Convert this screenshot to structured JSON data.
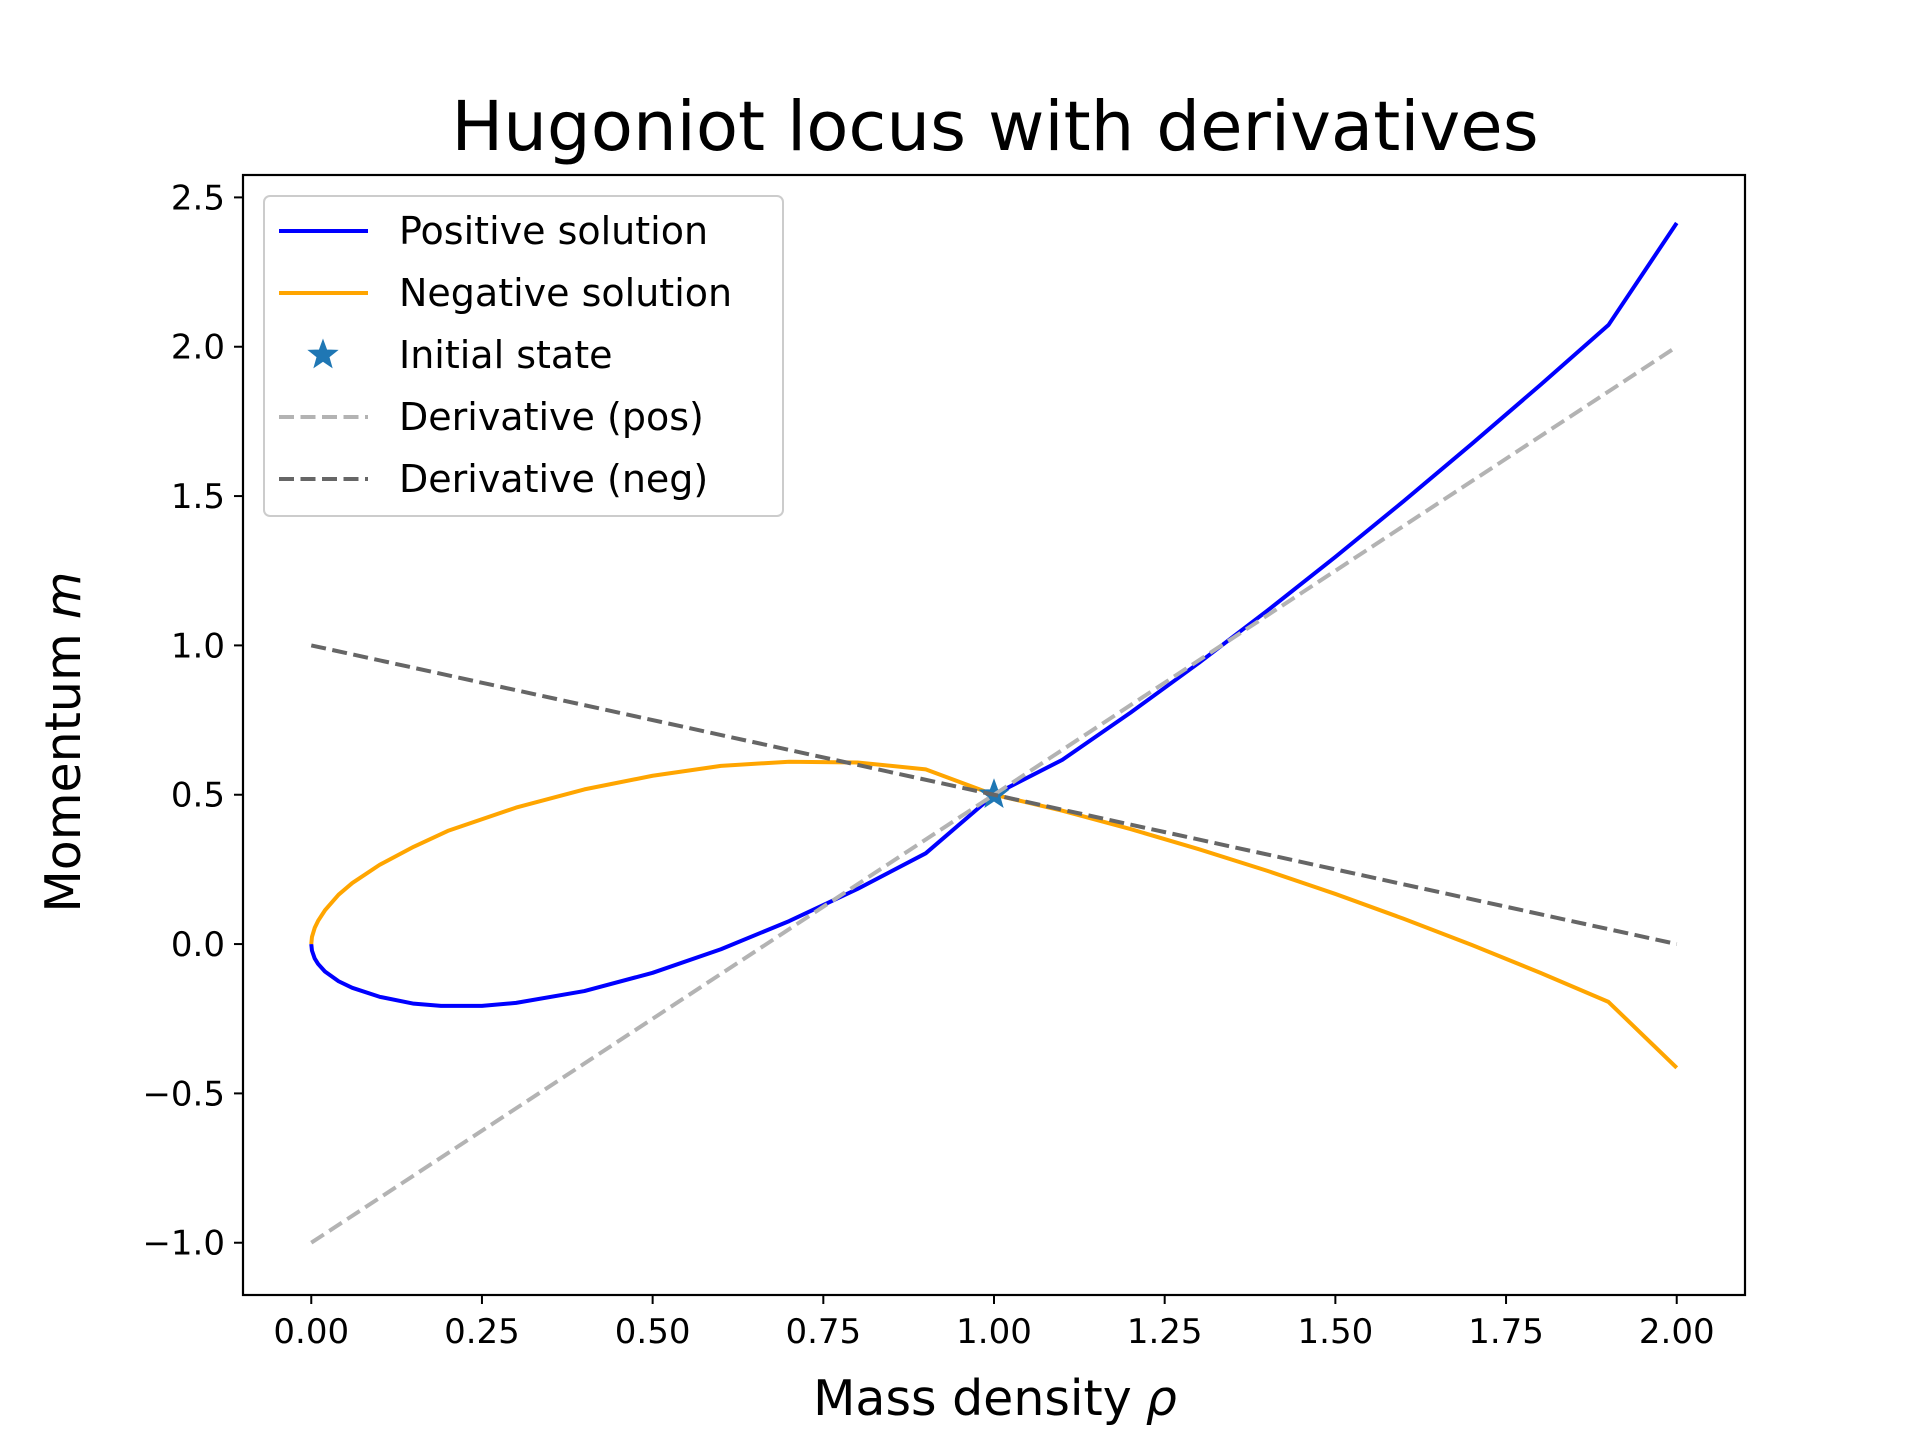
{
  "chart_data": {
    "type": "line",
    "title": "Hugoniot locus with derivatives",
    "xlabel": "Mass density",
    "xlabel_symbol": "ρ",
    "ylabel": "Momentum",
    "ylabel_symbol": "m",
    "xlim": [
      -0.1,
      2.1
    ],
    "ylim": [
      -1.175,
      2.575
    ],
    "x_ticks": [
      0.0,
      0.25,
      0.5,
      0.75,
      1.0,
      1.25,
      1.5,
      1.75,
      2.0
    ],
    "x_tick_labels": [
      "0.00",
      "0.25",
      "0.50",
      "0.75",
      "1.00",
      "1.25",
      "1.50",
      "1.75",
      "2.00"
    ],
    "y_ticks": [
      -1.0,
      -0.5,
      0.0,
      0.5,
      1.0,
      1.5,
      2.0,
      2.5
    ],
    "y_tick_labels": [
      "−1.0",
      "−0.5",
      "0.0",
      "0.5",
      "1.0",
      "1.5",
      "2.0",
      "2.5"
    ],
    "grid": false,
    "legend_position": "upper-left",
    "series": [
      {
        "name": "Positive solution",
        "color": "#0000ff",
        "style": "solid",
        "x": [
          0.0,
          0.001,
          0.005,
          0.01,
          0.02,
          0.04,
          0.06,
          0.1,
          0.15,
          0.19,
          0.25,
          0.3,
          0.4,
          0.5,
          0.6,
          0.7,
          0.8,
          0.9,
          1.0,
          1.1,
          1.2,
          1.3,
          1.4,
          1.5,
          1.6,
          1.7,
          1.8,
          1.9,
          2.0
        ],
        "y": [
          0.0,
          -0.0219,
          -0.0481,
          -0.0666,
          -0.0918,
          -0.1245,
          -0.1464,
          -0.1765,
          -0.1995,
          -0.2071,
          -0.2071,
          -0.1969,
          -0.1573,
          -0.0962,
          -0.0174,
          0.0769,
          0.1844,
          0.3038,
          0.5,
          0.6168,
          0.775,
          0.9413,
          1.1157,
          1.2962,
          1.4828,
          1.6749,
          1.8714,
          2.0726,
          2.4142
        ]
      },
      {
        "name": "Negative solution",
        "color": "#ffa500",
        "style": "solid",
        "x": [
          0.0,
          0.001,
          0.005,
          0.01,
          0.02,
          0.04,
          0.06,
          0.1,
          0.15,
          0.2,
          0.3,
          0.4,
          0.5,
          0.6,
          0.7,
          0.8,
          0.9,
          1.0,
          1.1,
          1.2,
          1.3,
          1.4,
          1.5,
          1.6,
          1.7,
          1.8,
          1.9,
          2.0
        ],
        "y": [
          0.0,
          0.0239,
          0.0541,
          0.0778,
          0.1129,
          0.1653,
          0.2043,
          0.2652,
          0.3257,
          0.3789,
          0.4569,
          0.5179,
          0.5635,
          0.5966,
          0.6106,
          0.6081,
          0.5849,
          0.5,
          0.4467,
          0.385,
          0.3178,
          0.2455,
          0.1679,
          0.0848,
          -0.0031,
          -0.0961,
          -0.1936,
          -0.4142
        ]
      },
      {
        "name": "Derivative (pos)",
        "color": "#b3b3b3",
        "style": "dashed",
        "x": [
          0.0,
          2.0
        ],
        "y": [
          -1.0,
          2.0
        ]
      },
      {
        "name": "Derivative (neg)",
        "color": "#666666",
        "style": "dashed",
        "x": [
          0.0,
          2.0
        ],
        "y": [
          1.0,
          0.0
        ]
      }
    ],
    "markers": [
      {
        "name": "Initial state",
        "x": 1.0,
        "y": 0.5,
        "marker": "star",
        "color": "#1f77b4"
      }
    ],
    "legend": [
      {
        "label": "Positive solution",
        "kind": "line",
        "color": "#0000ff",
        "style": "solid"
      },
      {
        "label": "Negative solution",
        "kind": "line",
        "color": "#ffa500",
        "style": "solid"
      },
      {
        "label": "Initial state",
        "kind": "marker",
        "color": "#1f77b4",
        "style": "star"
      },
      {
        "label": "Derivative (pos)",
        "kind": "line",
        "color": "#b3b3b3",
        "style": "dashed"
      },
      {
        "label": "Derivative (neg)",
        "kind": "line",
        "color": "#666666",
        "style": "dashed"
      }
    ]
  }
}
